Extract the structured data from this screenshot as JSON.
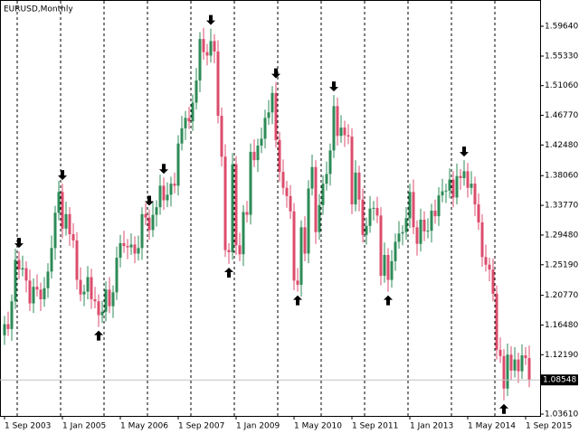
{
  "chart_data": {
    "type": "candlestick",
    "title": "EURUSD,Monthly",
    "x": [
      "2003-09-01",
      "2003-10-01",
      "2003-11-01",
      "2003-12-01",
      "2004-01-01",
      "2004-02-01",
      "2004-03-01",
      "2004-04-01",
      "2004-05-01",
      "2004-06-01",
      "2004-07-01",
      "2004-08-01",
      "2004-09-01",
      "2004-10-01",
      "2004-11-01",
      "2004-12-01",
      "2005-01-01",
      "2005-02-01",
      "2005-03-01",
      "2005-04-01",
      "2005-05-01",
      "2005-06-01",
      "2005-07-01",
      "2005-08-01",
      "2005-09-01",
      "2005-10-01",
      "2005-11-01",
      "2005-12-01",
      "2006-01-01",
      "2006-02-01",
      "2006-03-01",
      "2006-04-01",
      "2006-05-01",
      "2006-06-01",
      "2006-07-01",
      "2006-08-01",
      "2006-09-01",
      "2006-10-01",
      "2006-11-01",
      "2006-12-01",
      "2007-01-01",
      "2007-02-01",
      "2007-03-01",
      "2007-04-01",
      "2007-05-01",
      "2007-06-01",
      "2007-07-01",
      "2007-08-01",
      "2007-09-01",
      "2007-10-01",
      "2007-11-01",
      "2007-12-01",
      "2008-01-01",
      "2008-02-01",
      "2008-03-01",
      "2008-04-01",
      "2008-05-01",
      "2008-06-01",
      "2008-07-01",
      "2008-08-01",
      "2008-09-01",
      "2008-10-01",
      "2008-11-01",
      "2008-12-01",
      "2009-01-01",
      "2009-02-01",
      "2009-03-01",
      "2009-04-01",
      "2009-05-01",
      "2009-06-01",
      "2009-07-01",
      "2009-08-01",
      "2009-09-01",
      "2009-10-01",
      "2009-11-01",
      "2009-12-01",
      "2010-01-01",
      "2010-02-01",
      "2010-03-01",
      "2010-04-01",
      "2010-05-01",
      "2010-06-01",
      "2010-07-01",
      "2010-08-01",
      "2010-09-01",
      "2010-10-01",
      "2010-11-01",
      "2010-12-01",
      "2011-01-01",
      "2011-02-01",
      "2011-03-01",
      "2011-04-01",
      "2011-05-01",
      "2011-06-01",
      "2011-07-01",
      "2011-08-01",
      "2011-09-01",
      "2011-10-01",
      "2011-11-01",
      "2011-12-01",
      "2012-01-01",
      "2012-02-01",
      "2012-03-01",
      "2012-04-01",
      "2012-05-01",
      "2012-06-01",
      "2012-07-01",
      "2012-08-01",
      "2012-09-01",
      "2012-10-01",
      "2012-11-01",
      "2012-12-01",
      "2013-01-01",
      "2013-02-01",
      "2013-03-01",
      "2013-04-01",
      "2013-05-01",
      "2013-06-01",
      "2013-07-01",
      "2013-08-01",
      "2013-09-01",
      "2013-10-01",
      "2013-11-01",
      "2013-12-01",
      "2014-01-01",
      "2014-02-01",
      "2014-03-01",
      "2014-04-01",
      "2014-05-01",
      "2014-06-01",
      "2014-07-01",
      "2014-08-01",
      "2014-09-01",
      "2014-10-01",
      "2014-11-01",
      "2014-12-01",
      "2015-01-01",
      "2015-02-01",
      "2015-03-01",
      "2015-04-01",
      "2015-05-01",
      "2015-06-01",
      "2015-07-01",
      "2015-08-01",
      "2015-09-01",
      "2015-10-01"
    ],
    "open": [
      1.15,
      1.166,
      1.159,
      1.199,
      1.259,
      1.245,
      1.247,
      1.229,
      1.196,
      1.22,
      1.216,
      1.202,
      1.218,
      1.242,
      1.276,
      1.327,
      1.357,
      1.304,
      1.325,
      1.296,
      1.287,
      1.23,
      1.209,
      1.213,
      1.234,
      1.202,
      1.199,
      1.179,
      1.184,
      1.216,
      1.192,
      1.212,
      1.262,
      1.283,
      1.279,
      1.277,
      1.281,
      1.268,
      1.276,
      1.325,
      1.32,
      1.302,
      1.324,
      1.335,
      1.366,
      1.345,
      1.353,
      1.369,
      1.366,
      1.427,
      1.449,
      1.464,
      1.459,
      1.486,
      1.518,
      1.578,
      1.559,
      1.554,
      1.575,
      1.56,
      1.467,
      1.408,
      1.273,
      1.27,
      1.397,
      1.28,
      1.267,
      1.328,
      1.324,
      1.415,
      1.403,
      1.424,
      1.434,
      1.464,
      1.472,
      1.5,
      1.432,
      1.386,
      1.363,
      1.351,
      1.329,
      1.229,
      1.223,
      1.306,
      1.268,
      1.362,
      1.393,
      1.299,
      1.338,
      1.369,
      1.383,
      1.417,
      1.481,
      1.438,
      1.45,
      1.439,
      1.437,
      1.339,
      1.385,
      1.346,
      1.295,
      1.308,
      1.333,
      1.334,
      1.323,
      1.236,
      1.266,
      1.23,
      1.257,
      1.285,
      1.297,
      1.299,
      1.319,
      1.357,
      1.306,
      1.282,
      1.317,
      1.3,
      1.301,
      1.33,
      1.322,
      1.352,
      1.358,
      1.359,
      1.375,
      1.349,
      1.38,
      1.377,
      1.387,
      1.363,
      1.369,
      1.339,
      1.313,
      1.263,
      1.252,
      1.245,
      1.21,
      1.129,
      1.12,
      1.073,
      1.122,
      1.099,
      1.115,
      1.098,
      1.121,
      1.117
    ],
    "high": [
      1.178,
      1.184,
      1.209,
      1.275,
      1.271,
      1.265,
      1.257,
      1.245,
      1.232,
      1.238,
      1.226,
      1.234,
      1.254,
      1.294,
      1.337,
      1.373,
      1.369,
      1.343,
      1.335,
      1.312,
      1.299,
      1.248,
      1.223,
      1.25,
      1.246,
      1.22,
      1.209,
      1.2,
      1.228,
      1.234,
      1.222,
      1.278,
      1.295,
      1.301,
      1.289,
      1.297,
      1.293,
      1.294,
      1.335,
      1.341,
      1.332,
      1.342,
      1.345,
      1.382,
      1.378,
      1.371,
      1.379,
      1.385,
      1.439,
      1.467,
      1.474,
      1.48,
      1.498,
      1.536,
      1.588,
      1.594,
      1.571,
      1.593,
      1.585,
      1.576,
      1.479,
      1.426,
      1.283,
      1.413,
      1.409,
      1.298,
      1.338,
      1.344,
      1.427,
      1.433,
      1.434,
      1.45,
      1.476,
      1.49,
      1.51,
      1.516,
      1.444,
      1.404,
      1.373,
      1.367,
      1.341,
      1.247,
      1.316,
      1.322,
      1.374,
      1.411,
      1.403,
      1.354,
      1.381,
      1.401,
      1.427,
      1.497,
      1.493,
      1.468,
      1.46,
      1.455,
      1.449,
      1.403,
      1.395,
      1.362,
      1.32,
      1.351,
      1.344,
      1.35,
      1.335,
      1.284,
      1.276,
      1.273,
      1.297,
      1.315,
      1.309,
      1.335,
      1.369,
      1.375,
      1.316,
      1.333,
      1.329,
      1.319,
      1.34,
      1.346,
      1.364,
      1.376,
      1.369,
      1.391,
      1.387,
      1.398,
      1.39,
      1.403,
      1.399,
      1.387,
      1.379,
      1.355,
      1.325,
      1.281,
      1.262,
      1.261,
      1.222,
      1.147,
      1.13,
      1.138,
      1.134,
      1.133,
      1.125,
      1.137,
      1.133,
      1.135
    ],
    "low": [
      1.136,
      1.149,
      1.142,
      1.188,
      1.231,
      1.235,
      1.212,
      1.185,
      1.182,
      1.206,
      1.185,
      1.191,
      1.204,
      1.232,
      1.259,
      1.316,
      1.29,
      1.294,
      1.279,
      1.276,
      1.216,
      1.199,
      1.192,
      1.202,
      1.188,
      1.189,
      1.162,
      1.168,
      1.17,
      1.182,
      1.175,
      1.201,
      1.248,
      1.269,
      1.26,
      1.266,
      1.254,
      1.258,
      1.259,
      1.309,
      1.288,
      1.292,
      1.307,
      1.324,
      1.331,
      1.335,
      1.336,
      1.355,
      1.352,
      1.417,
      1.432,
      1.448,
      1.445,
      1.476,
      1.501,
      1.548,
      1.54,
      1.544,
      1.543,
      1.456,
      1.394,
      1.263,
      1.253,
      1.259,
      1.266,
      1.257,
      1.25,
      1.313,
      1.31,
      1.393,
      1.386,
      1.413,
      1.42,
      1.454,
      1.455,
      1.421,
      1.372,
      1.353,
      1.334,
      1.318,
      1.215,
      1.213,
      1.206,
      1.257,
      1.254,
      1.352,
      1.282,
      1.288,
      1.324,
      1.359,
      1.366,
      1.406,
      1.424,
      1.428,
      1.422,
      1.426,
      1.325,
      1.329,
      1.329,
      1.284,
      1.281,
      1.298,
      1.316,
      1.312,
      1.222,
      1.226,
      1.213,
      1.219,
      1.243,
      1.275,
      1.28,
      1.288,
      1.305,
      1.296,
      1.265,
      1.271,
      1.286,
      1.29,
      1.284,
      1.311,
      1.308,
      1.342,
      1.341,
      1.348,
      1.335,
      1.339,
      1.36,
      1.366,
      1.349,
      1.353,
      1.322,
      1.302,
      1.249,
      1.242,
      1.228,
      1.199,
      1.115,
      1.11,
      1.056,
      1.062,
      1.085,
      1.089,
      1.081,
      1.087,
      1.107,
      1.075
    ],
    "close": [
      1.166,
      1.159,
      1.199,
      1.259,
      1.245,
      1.247,
      1.229,
      1.196,
      1.22,
      1.216,
      1.202,
      1.218,
      1.242,
      1.276,
      1.327,
      1.357,
      1.304,
      1.325,
      1.296,
      1.287,
      1.23,
      1.209,
      1.213,
      1.234,
      1.202,
      1.199,
      1.179,
      1.184,
      1.216,
      1.192,
      1.212,
      1.262,
      1.283,
      1.279,
      1.277,
      1.281,
      1.268,
      1.276,
      1.325,
      1.32,
      1.302,
      1.324,
      1.335,
      1.366,
      1.345,
      1.353,
      1.369,
      1.366,
      1.427,
      1.449,
      1.464,
      1.459,
      1.486,
      1.518,
      1.578,
      1.559,
      1.554,
      1.575,
      1.56,
      1.467,
      1.408,
      1.273,
      1.27,
      1.397,
      1.28,
      1.267,
      1.328,
      1.324,
      1.415,
      1.403,
      1.424,
      1.434,
      1.464,
      1.472,
      1.5,
      1.432,
      1.386,
      1.363,
      1.351,
      1.329,
      1.229,
      1.223,
      1.306,
      1.268,
      1.362,
      1.393,
      1.299,
      1.338,
      1.369,
      1.383,
      1.417,
      1.481,
      1.438,
      1.45,
      1.439,
      1.437,
      1.339,
      1.385,
      1.346,
      1.295,
      1.308,
      1.333,
      1.334,
      1.323,
      1.236,
      1.266,
      1.23,
      1.257,
      1.285,
      1.297,
      1.299,
      1.319,
      1.357,
      1.306,
      1.282,
      1.317,
      1.3,
      1.301,
      1.33,
      1.322,
      1.352,
      1.358,
      1.359,
      1.375,
      1.349,
      1.38,
      1.377,
      1.387,
      1.363,
      1.369,
      1.339,
      1.313,
      1.263,
      1.252,
      1.245,
      1.21,
      1.129,
      1.12,
      1.073,
      1.122,
      1.099,
      1.115,
      1.098,
      1.121,
      1.117,
      1.08548
    ],
    "last_price_label": "1.08548",
    "up_color": "#2e8b57",
    "down_color": "#dc4c6c",
    "ylim": [
      1.0335,
      1.6343
    ],
    "yticks": [
      {
        "value": 1.5964,
        "label": "1.59640"
      },
      {
        "value": 1.5533,
        "label": "1.55330"
      },
      {
        "value": 1.5106,
        "label": "1.51060"
      },
      {
        "value": 1.4677,
        "label": "1.46770"
      },
      {
        "value": 1.4248,
        "label": "1.42480"
      },
      {
        "value": 1.3806,
        "label": "1.38060"
      },
      {
        "value": 1.3377,
        "label": "1.33770"
      },
      {
        "value": 1.2948,
        "label": "1.29480"
      },
      {
        "value": 1.2519,
        "label": "1.25190"
      },
      {
        "value": 1.2077,
        "label": "1.20770"
      },
      {
        "value": 1.1648,
        "label": "1.16480"
      },
      {
        "value": 1.1219,
        "label": "1.12190"
      },
      {
        "value": 1.0361,
        "label": "1.03610"
      }
    ],
    "xticks": [
      {
        "value": "2003-09-01",
        "label": "1 Sep 2003"
      },
      {
        "value": "2005-01-01",
        "label": "1 Jan 2005"
      },
      {
        "value": "2006-05-01",
        "label": "1 May 2006"
      },
      {
        "value": "2007-09-01",
        "label": "1 Sep 2007"
      },
      {
        "value": "2009-01-01",
        "label": "1 Jan 2009"
      },
      {
        "value": "2010-05-01",
        "label": "1 May 2010"
      },
      {
        "value": "2011-09-01",
        "label": "1 Sep 2011"
      },
      {
        "value": "2013-01-01",
        "label": "1 Jan 2013"
      },
      {
        "value": "2014-05-01",
        "label": "1 May 2014"
      },
      {
        "value": "2015-09-01",
        "label": "1 Sep 2015"
      }
    ],
    "period_separators": true,
    "fractals_down": [
      "2004-01-01",
      "2005-01-01",
      "2007-01-01",
      "2007-05-01",
      "2008-06-01",
      "2009-12-01",
      "2011-04-01",
      "2014-04-01"
    ],
    "fractals_up": [
      "2005-11-01",
      "2008-11-01",
      "2010-06-01",
      "2012-07-01",
      "2015-03-01"
    ]
  }
}
